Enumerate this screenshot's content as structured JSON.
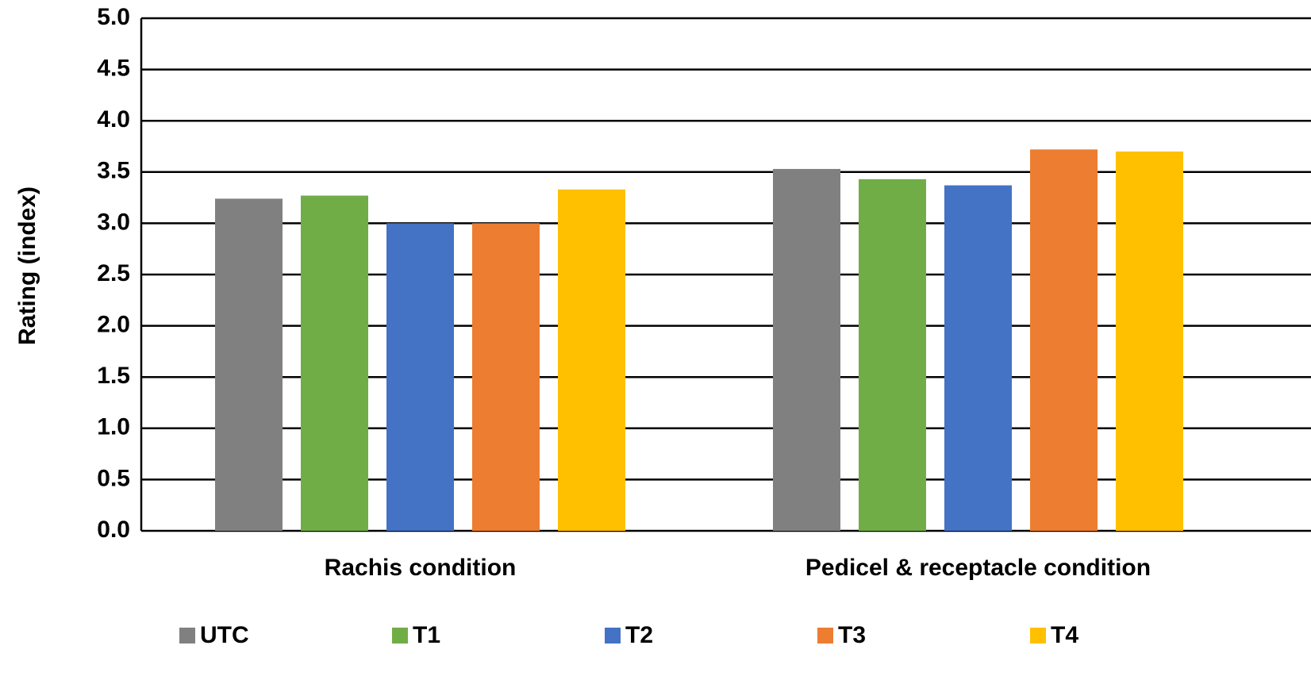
{
  "chart_data": {
    "type": "bar",
    "y_label": "Rating (index)",
    "categories": [
      "Rachis condition",
      "Pedicel & receptacle condition"
    ],
    "series": [
      {
        "name": "UTC",
        "color": "#808080",
        "values": [
          3.24,
          3.53
        ]
      },
      {
        "name": "T1",
        "color": "#70ad47",
        "values": [
          3.27,
          3.43
        ]
      },
      {
        "name": "T2",
        "color": "#4472c4",
        "values": [
          3.0,
          3.37
        ]
      },
      {
        "name": "T3",
        "color": "#ed7d31",
        "values": [
          3.0,
          3.72
        ]
      },
      {
        "name": "T4",
        "color": "#ffc000",
        "values": [
          3.33,
          3.7
        ]
      }
    ],
    "ylim": [
      0,
      5
    ],
    "yticks": [
      {
        "value": 0,
        "label": "0.0"
      },
      0.5,
      {
        "value": 1,
        "label": "1.0"
      },
      1.5,
      {
        "value": 2,
        "label": "2.0"
      },
      2.5,
      {
        "value": 3,
        "label": "3.0"
      },
      3.5,
      {
        "value": 4,
        "label": "4.0"
      },
      4.5,
      {
        "value": 5,
        "label": "5.0"
      }
    ],
    "grid": true,
    "legend": "bottom"
  }
}
